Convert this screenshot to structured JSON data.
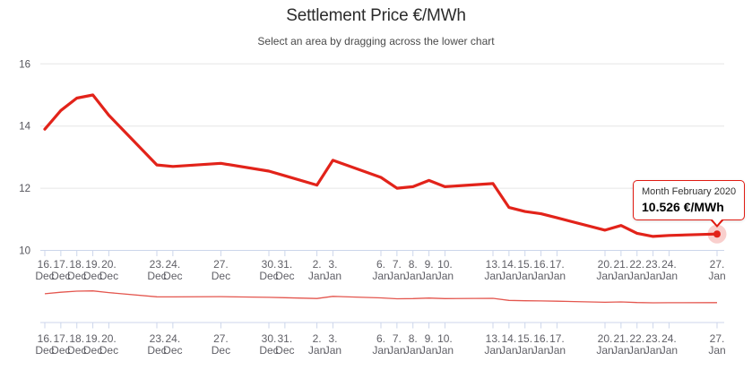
{
  "header": {
    "title": "Settlement Price €/MWh",
    "subtitle": "Select an area by dragging across the lower chart"
  },
  "tooltip": {
    "line1": "Month February 2020",
    "line2": "10.526 €/MWh"
  },
  "colors": {
    "series": "#e2231a",
    "navigator_series": "#e4564e",
    "gridline": "#e6e6e6",
    "axis_line": "#ccd6eb",
    "tick": "#ccd6eb",
    "axis_label": "#5f5f66",
    "y_axis_label": "#55555c",
    "marker": "#e2231a",
    "marker_halo": "rgba(226,35,26,0.22)",
    "tooltip_border": "#e01b12"
  },
  "chart_data": {
    "type": "line",
    "title": "Settlement Price €/MWh",
    "subtitle": "Select an area by dragging across the lower chart",
    "series_name": "Month February 2020",
    "unit": "€/MWh",
    "ylim": [
      10,
      16
    ],
    "yticks": [
      10,
      12,
      14,
      16
    ],
    "grid": true,
    "legend": false,
    "navigator": true,
    "last_point_label": "10.526 €/MWh",
    "points": [
      {
        "day": "16.",
        "month": "Dec",
        "offset": 0,
        "value": 13.9
      },
      {
        "day": "17.",
        "month": "Dec",
        "offset": 1,
        "value": 14.5
      },
      {
        "day": "18.",
        "month": "Dec",
        "offset": 2,
        "value": 14.9
      },
      {
        "day": "19.",
        "month": "Dec",
        "offset": 3,
        "value": 15.0
      },
      {
        "day": "20.",
        "month": "Dec",
        "offset": 4,
        "value": 14.35
      },
      {
        "day": "23.",
        "month": "Dec",
        "offset": 7,
        "value": 12.75
      },
      {
        "day": "24.",
        "month": "Dec",
        "offset": 8,
        "value": 12.7
      },
      {
        "day": "27.",
        "month": "Dec",
        "offset": 11,
        "value": 12.8
      },
      {
        "day": "30.",
        "month": "Dec",
        "offset": 14,
        "value": 12.55
      },
      {
        "day": "31.",
        "month": "Dec",
        "offset": 15,
        "value": 12.4
      },
      {
        "day": "2.",
        "month": "Jan",
        "offset": 17,
        "value": 12.1
      },
      {
        "day": "3.",
        "month": "Jan",
        "offset": 18,
        "value": 12.9
      },
      {
        "day": "6.",
        "month": "Jan",
        "offset": 21,
        "value": 12.35
      },
      {
        "day": "7.",
        "month": "Jan",
        "offset": 22,
        "value": 12.0
      },
      {
        "day": "8.",
        "month": "Jan",
        "offset": 23,
        "value": 12.05
      },
      {
        "day": "9.",
        "month": "Jan",
        "offset": 24,
        "value": 12.25
      },
      {
        "day": "10.",
        "month": "Jan",
        "offset": 25,
        "value": 12.05
      },
      {
        "day": "13.",
        "month": "Jan",
        "offset": 28,
        "value": 12.15
      },
      {
        "day": "14.",
        "month": "Jan",
        "offset": 29,
        "value": 11.38
      },
      {
        "day": "15.",
        "month": "Jan",
        "offset": 30,
        "value": 11.25
      },
      {
        "day": "16.",
        "month": "Jan",
        "offset": 31,
        "value": 11.18
      },
      {
        "day": "17.",
        "month": "Jan",
        "offset": 32,
        "value": 11.05
      },
      {
        "day": "20.",
        "month": "Jan",
        "offset": 35,
        "value": 10.65
      },
      {
        "day": "21.",
        "month": "Jan",
        "offset": 36,
        "value": 10.8
      },
      {
        "day": "22.",
        "month": "Jan",
        "offset": 37,
        "value": 10.55
      },
      {
        "day": "23.",
        "month": "Jan",
        "offset": 38,
        "value": 10.45
      },
      {
        "day": "24.",
        "month": "Jan",
        "offset": 39,
        "value": 10.48
      },
      {
        "day": "27.",
        "month": "Jan",
        "offset": 42,
        "value": 10.526
      }
    ]
  }
}
